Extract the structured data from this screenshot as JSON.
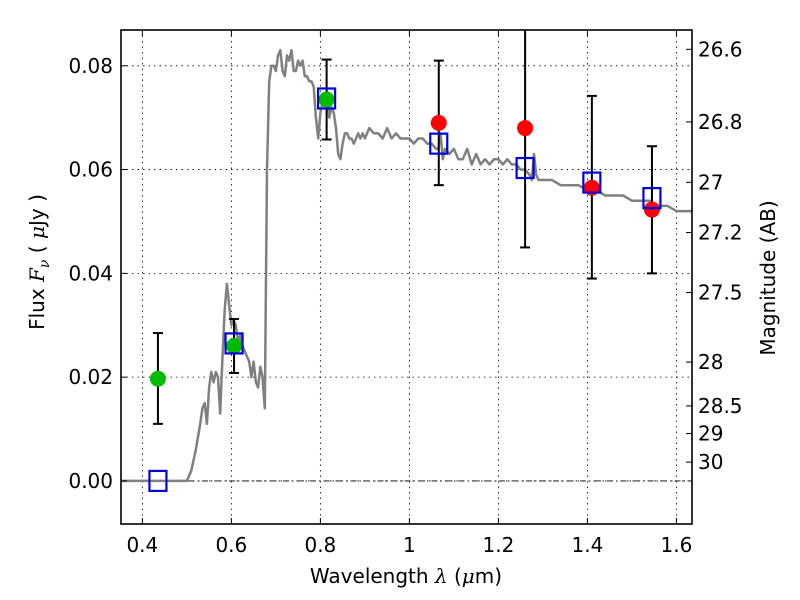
{
  "chart_data": {
    "type": "scatter",
    "title": "",
    "xlabel": "Wavelength  λ (μm)",
    "xlabel_parts": {
      "text": "Wavelength  ",
      "symbol": "λ",
      "unit_open": " (",
      "unit_mu": "μ",
      "unit_rest": "m)"
    },
    "ylabel": "Flux  Fν ( μJy )",
    "ylabel_parts": {
      "text": "Flux  ",
      "symbol": "F",
      "subscript": "ν",
      "unit_open": " ( ",
      "unit_mu": "μ",
      "unit_rest": "Jy )"
    },
    "y2label": "Magnitude (AB)",
    "xlim": [
      0.352,
      1.635
    ],
    "ylim": [
      -0.0083,
      0.0869
    ],
    "grid": true,
    "x_ticks": [
      0.4,
      0.6,
      0.8,
      1.0,
      1.2,
      1.4,
      1.6
    ],
    "x_tick_labels": [
      "0.4",
      "0.6",
      "0.8",
      "1",
      "1.2",
      "1.4",
      "1.6"
    ],
    "y_ticks": [
      0.0,
      0.02,
      0.04,
      0.06,
      0.08
    ],
    "y_tick_labels": [
      "0.00",
      "0.02",
      "0.04",
      "0.06",
      "0.08"
    ],
    "y2_ticks": [
      26.6,
      26.8,
      27.0,
      27.2,
      27.5,
      28.0,
      28.5,
      29.0,
      30.0
    ],
    "y2_tick_labels": [
      "26.6",
      "26.8",
      "27",
      "27.2",
      "27.5",
      "28",
      "28.5",
      "29",
      "30"
    ],
    "y2_zero_point": 23.9,
    "zero_line": true,
    "colors": {
      "spectrum": "#808080",
      "detected": "#00bb00",
      "predicted": "#ff0000",
      "model_box": "#0000dd",
      "errorbar": "#000000"
    },
    "series": [
      {
        "name": "model spectrum",
        "type": "line",
        "x": [
          0.352,
          0.4,
          0.45,
          0.5,
          0.51,
          0.52,
          0.53,
          0.535,
          0.54,
          0.545,
          0.55,
          0.555,
          0.56,
          0.565,
          0.57,
          0.575,
          0.58,
          0.585,
          0.59,
          0.595,
          0.6,
          0.605,
          0.61,
          0.615,
          0.62,
          0.625,
          0.63,
          0.635,
          0.64,
          0.645,
          0.65,
          0.655,
          0.66,
          0.665,
          0.67,
          0.675,
          0.68,
          0.685,
          0.69,
          0.695,
          0.7,
          0.705,
          0.71,
          0.715,
          0.72,
          0.725,
          0.73,
          0.735,
          0.74,
          0.745,
          0.75,
          0.755,
          0.76,
          0.765,
          0.77,
          0.775,
          0.78,
          0.785,
          0.79,
          0.795,
          0.8,
          0.805,
          0.81,
          0.815,
          0.82,
          0.825,
          0.83,
          0.835,
          0.84,
          0.845,
          0.85,
          0.855,
          0.86,
          0.865,
          0.87,
          0.875,
          0.88,
          0.885,
          0.89,
          0.895,
          0.9,
          0.91,
          0.92,
          0.93,
          0.94,
          0.95,
          0.96,
          0.97,
          0.98,
          0.99,
          1.0,
          1.01,
          1.02,
          1.03,
          1.04,
          1.05,
          1.06,
          1.065,
          1.07,
          1.075,
          1.08,
          1.09,
          1.1,
          1.11,
          1.12,
          1.13,
          1.14,
          1.15,
          1.16,
          1.17,
          1.18,
          1.19,
          1.2,
          1.21,
          1.22,
          1.23,
          1.24,
          1.25,
          1.26,
          1.27,
          1.275,
          1.28,
          1.285,
          1.29,
          1.3,
          1.32,
          1.34,
          1.36,
          1.38,
          1.4,
          1.42,
          1.44,
          1.46,
          1.48,
          1.5,
          1.52,
          1.54,
          1.56,
          1.58,
          1.6,
          1.635
        ],
        "y": [
          0.0,
          0.0,
          0.0,
          0.0,
          0.002,
          0.006,
          0.011,
          0.014,
          0.015,
          0.011,
          0.018,
          0.021,
          0.019,
          0.021,
          0.02,
          0.013,
          0.024,
          0.033,
          0.038,
          0.034,
          0.03,
          0.031,
          0.03,
          0.027,
          0.028,
          0.026,
          0.025,
          0.024,
          0.023,
          0.02,
          0.023,
          0.019,
          0.018,
          0.022,
          0.02,
          0.014,
          0.06,
          0.077,
          0.08,
          0.08,
          0.079,
          0.082,
          0.083,
          0.079,
          0.078,
          0.082,
          0.081,
          0.083,
          0.079,
          0.079,
          0.081,
          0.08,
          0.081,
          0.078,
          0.078,
          0.077,
          0.077,
          0.076,
          0.07,
          0.066,
          0.071,
          0.073,
          0.073,
          0.075,
          0.07,
          0.072,
          0.071,
          0.068,
          0.063,
          0.062,
          0.065,
          0.067,
          0.067,
          0.066,
          0.066,
          0.065,
          0.066,
          0.067,
          0.066,
          0.067,
          0.066,
          0.068,
          0.067,
          0.067,
          0.066,
          0.068,
          0.066,
          0.067,
          0.066,
          0.066,
          0.066,
          0.065,
          0.066,
          0.066,
          0.065,
          0.065,
          0.064,
          0.064,
          0.067,
          0.062,
          0.064,
          0.063,
          0.064,
          0.062,
          0.062,
          0.064,
          0.061,
          0.063,
          0.061,
          0.062,
          0.061,
          0.062,
          0.062,
          0.061,
          0.062,
          0.061,
          0.061,
          0.06,
          0.06,
          0.059,
          0.058,
          0.063,
          0.059,
          0.058,
          0.058,
          0.058,
          0.057,
          0.057,
          0.057,
          0.056,
          0.056,
          0.055,
          0.055,
          0.055,
          0.054,
          0.054,
          0.054,
          0.053,
          0.053,
          0.052,
          0.052
        ]
      },
      {
        "name": "detected photometry",
        "type": "scatter",
        "marker": "circle",
        "x": [
          0.435,
          0.606,
          0.814
        ],
        "y": [
          0.0197,
          0.026,
          0.0735
        ]
      },
      {
        "name": "photometry (red)",
        "type": "scatter",
        "marker": "circle",
        "x": [
          1.066,
          1.26,
          1.41,
          1.545
        ],
        "y": [
          0.069,
          0.068,
          0.0565,
          0.0523
        ]
      },
      {
        "name": "model band fluxes",
        "type": "scatter",
        "marker": "square-open",
        "x": [
          0.435,
          0.606,
          0.814,
          1.066,
          1.26,
          1.41,
          1.545
        ],
        "y": [
          0.0,
          0.0265,
          0.0737,
          0.065,
          0.0603,
          0.0575,
          0.0545
        ]
      },
      {
        "name": "error bars",
        "type": "errorbar",
        "x": [
          0.435,
          0.606,
          0.814,
          1.066,
          1.26,
          1.41,
          1.545
        ],
        "low": [
          0.011,
          0.0208,
          0.0658,
          0.057,
          0.045,
          0.039,
          0.04
        ],
        "high": [
          0.0285,
          0.0312,
          0.0812,
          0.081,
          0.095,
          0.0742,
          0.0645
        ]
      }
    ]
  }
}
